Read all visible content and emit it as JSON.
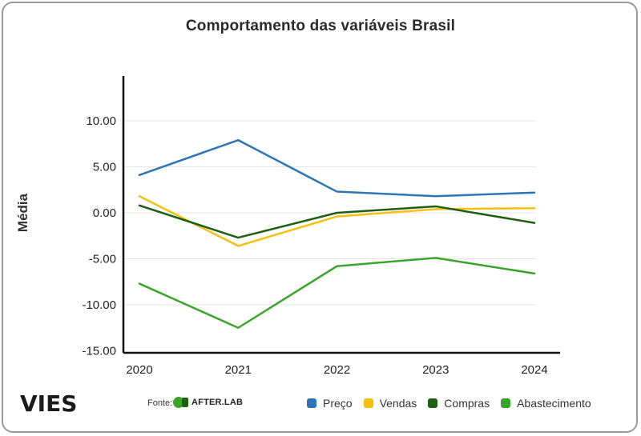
{
  "chart_data": {
    "type": "line",
    "title": "Comportamento das variáveis Brasil",
    "xlabel": "",
    "ylabel": "Média",
    "categories": [
      "2020",
      "2021",
      "2022",
      "2023",
      "2024"
    ],
    "ylim": [
      -15,
      15
    ],
    "yticks": [
      10,
      5,
      0,
      -5,
      -10,
      -15
    ],
    "ytick_labels": [
      "10.00",
      "5.00",
      "0.00",
      "-5.00",
      "-10.00",
      "-15.00"
    ],
    "grid": true,
    "legend_position": "bottom-right",
    "series": [
      {
        "name": "Preço",
        "color": "#2e75b6",
        "values": [
          4.1,
          7.9,
          2.3,
          1.8,
          2.2
        ]
      },
      {
        "name": "Vendas",
        "color": "#f5c010",
        "values": [
          1.8,
          -3.6,
          -0.4,
          0.4,
          0.5
        ]
      },
      {
        "name": "Compras",
        "color": "#1f5f14",
        "values": [
          0.8,
          -2.7,
          0.0,
          0.7,
          -1.1
        ]
      },
      {
        "name": "Abastecimento",
        "color": "#3aa52b",
        "values": [
          -7.7,
          -12.5,
          -5.8,
          -4.9,
          -6.6
        ]
      }
    ]
  },
  "footer": {
    "logo": "VIES",
    "source_label": "Fonte:",
    "source_brand": "AFTER.LAB"
  }
}
